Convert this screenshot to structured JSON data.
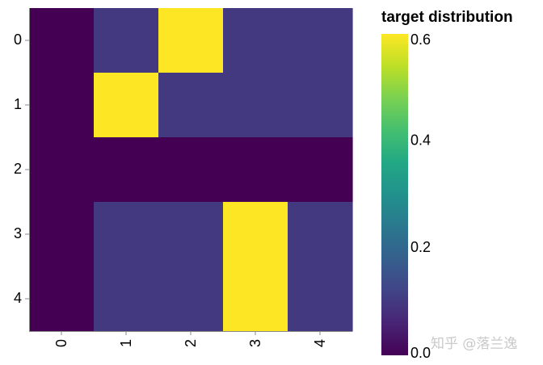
{
  "chart_data": {
    "type": "heatmap",
    "title": "",
    "xlabel": "",
    "ylabel": "",
    "x_categories": [
      "0",
      "1",
      "2",
      "3",
      "4"
    ],
    "y_categories": [
      "0",
      "1",
      "2",
      "3",
      "4"
    ],
    "values": [
      [
        0.0,
        0.1,
        0.6,
        0.1,
        0.1
      ],
      [
        0.0,
        0.6,
        0.1,
        0.1,
        0.1
      ],
      [
        0.0,
        0.0,
        0.0,
        0.0,
        0.0
      ],
      [
        0.0,
        0.1,
        0.1,
        0.6,
        0.1
      ],
      [
        0.0,
        0.1,
        0.1,
        0.6,
        0.1
      ]
    ],
    "color_scale": {
      "scheme": "viridis",
      "domain": [
        0.0,
        0.6
      ],
      "colors": [
        "#440154",
        "#482475",
        "#414487",
        "#355f8d",
        "#2a788e",
        "#21918c",
        "#22a884",
        "#44bf70",
        "#7ad151",
        "#bddf26",
        "#fde725"
      ],
      "ticks": [
        "0.0",
        "0.2",
        "0.4",
        "0.6"
      ],
      "tick_values": [
        0.0,
        0.2,
        0.4,
        0.6
      ]
    },
    "legend": {
      "title": "target distribution",
      "placement": "right"
    }
  },
  "watermark": "知乎 @落兰逸"
}
